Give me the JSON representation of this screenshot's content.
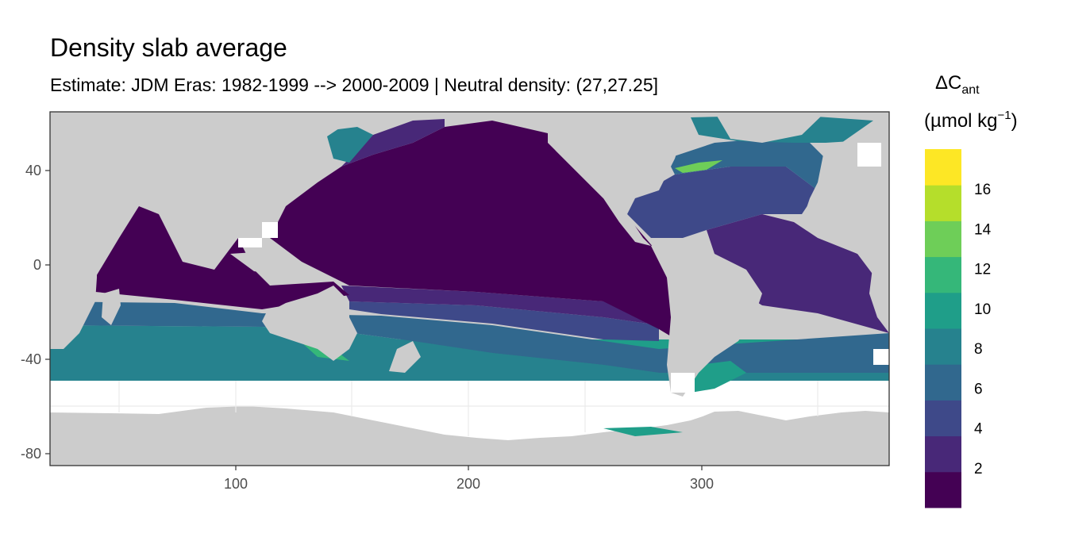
{
  "chart_data": {
    "type": "heatmap",
    "title": "Density slab average",
    "subtitle": "Estimate: JDM Eras: 1982-1999 --> 2000-2009 | Neutral density: (27,27.25]",
    "xlabel": "",
    "ylabel": "",
    "x_ticks": [
      "100",
      "200",
      "300"
    ],
    "y_ticks": [
      "40",
      "0",
      "-40",
      "-80"
    ],
    "xlim": [
      20,
      380
    ],
    "ylim": [
      -85,
      65
    ],
    "grid": true,
    "legend_position": "right",
    "legend": {
      "title_main": "ΔC",
      "title_sub": "ant",
      "unit": "(µmol kg",
      "unit_exp": "−1",
      "unit_close": ")",
      "labels": [
        "2",
        "4",
        "6",
        "8",
        "10",
        "12",
        "14",
        "16"
      ],
      "breaks": [
        2,
        4,
        6,
        8,
        10,
        12,
        14,
        16
      ],
      "range": [
        0,
        18
      ],
      "colors": [
        "#440154",
        "#482878",
        "#3E4989",
        "#31688E",
        "#26828E",
        "#1F9E89",
        "#35B779",
        "#6ECE58",
        "#B5DE2B",
        "#FDE725"
      ]
    },
    "colors": {
      "land": "#CCCCCC",
      "no_data": "#FFFFFF",
      "panel_border": "#333333",
      "grid": "#EBEBEB"
    }
  }
}
